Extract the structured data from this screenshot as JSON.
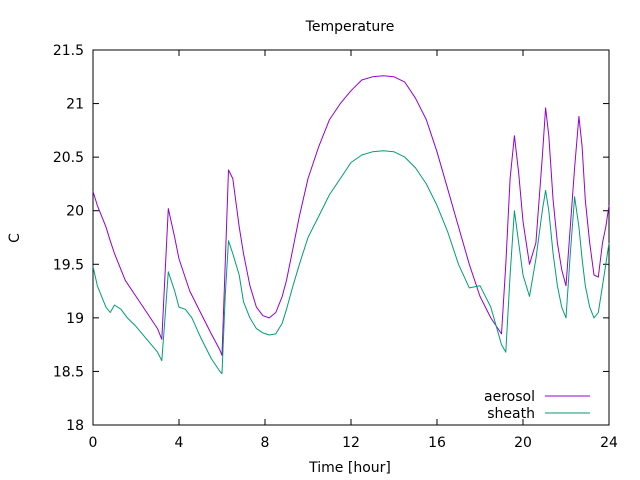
{
  "chart_data": {
    "type": "line",
    "title": "Temperature",
    "xlabel": "Time [hour]",
    "ylabel": "C",
    "xlim": [
      0,
      24
    ],
    "ylim": [
      18,
      21.5
    ],
    "x_ticks": [
      0,
      4,
      8,
      12,
      16,
      20,
      24
    ],
    "y_ticks": [
      18,
      18.5,
      19,
      19.5,
      20,
      20.5,
      21,
      21.5
    ],
    "x_tick_labels": [
      "0",
      "4",
      "8",
      "12",
      "16",
      "20",
      "24"
    ],
    "y_tick_labels": [
      "18",
      "18.5",
      "19",
      "19.5",
      "20",
      "20.5",
      "21",
      "21.5"
    ],
    "grid": false,
    "legend_position": "bottom-right",
    "series": [
      {
        "name": "aerosol",
        "color": "#9400d3",
        "x": [
          0,
          0.2,
          0.4,
          0.6,
          0.8,
          1.0,
          1.5,
          2.0,
          2.5,
          3.0,
          3.2,
          3.35,
          3.5,
          3.8,
          4.0,
          4.5,
          5.0,
          5.5,
          5.9,
          6.0,
          6.15,
          6.3,
          6.5,
          6.8,
          7.0,
          7.3,
          7.6,
          7.9,
          8.2,
          8.5,
          8.8,
          9.0,
          9.3,
          9.6,
          10.0,
          10.5,
          11.0,
          11.5,
          12.0,
          12.5,
          13.0,
          13.5,
          14.0,
          14.5,
          15.0,
          15.5,
          16.0,
          16.5,
          17.0,
          17.5,
          18.0,
          18.5,
          19.0,
          19.2,
          19.4,
          19.6,
          19.8,
          20.0,
          20.3,
          20.6,
          20.9,
          21.05,
          21.2,
          21.4,
          21.6,
          21.8,
          22.0,
          22.2,
          22.4,
          22.6,
          22.75,
          22.9,
          23.1,
          23.3,
          23.5,
          23.7,
          23.85,
          24.0
        ],
        "values": [
          20.18,
          20.05,
          19.95,
          19.85,
          19.72,
          19.6,
          19.35,
          19.2,
          19.05,
          18.9,
          18.8,
          19.4,
          20.02,
          19.75,
          19.55,
          19.25,
          19.05,
          18.85,
          18.7,
          18.65,
          19.5,
          20.38,
          20.3,
          19.85,
          19.6,
          19.3,
          19.1,
          19.02,
          19.0,
          19.05,
          19.2,
          19.35,
          19.65,
          19.95,
          20.3,
          20.6,
          20.85,
          21.0,
          21.12,
          21.22,
          21.25,
          21.26,
          21.25,
          21.2,
          21.05,
          20.85,
          20.55,
          20.2,
          19.85,
          19.5,
          19.2,
          19.0,
          18.85,
          19.5,
          20.3,
          20.7,
          20.35,
          19.9,
          19.5,
          19.7,
          20.5,
          20.96,
          20.7,
          20.1,
          19.7,
          19.45,
          19.3,
          19.85,
          20.4,
          20.88,
          20.6,
          20.1,
          19.7,
          19.4,
          19.38,
          19.7,
          19.85,
          20.05
        ]
      },
      {
        "name": "sheath",
        "color": "#009e73",
        "x": [
          0,
          0.2,
          0.4,
          0.6,
          0.8,
          1.0,
          1.3,
          1.6,
          2.0,
          2.5,
          3.0,
          3.2,
          3.35,
          3.5,
          3.8,
          4.0,
          4.3,
          4.6,
          5.0,
          5.5,
          5.9,
          6.0,
          6.15,
          6.3,
          6.5,
          6.8,
          7.0,
          7.3,
          7.6,
          7.9,
          8.2,
          8.5,
          8.8,
          9.0,
          9.3,
          9.6,
          10.0,
          10.5,
          11.0,
          11.5,
          12.0,
          12.5,
          13.0,
          13.5,
          14.0,
          14.5,
          15.0,
          15.5,
          16.0,
          16.5,
          17.0,
          17.5,
          18.0,
          18.5,
          19.0,
          19.2,
          19.4,
          19.6,
          19.8,
          20.0,
          20.3,
          20.6,
          20.9,
          21.05,
          21.2,
          21.4,
          21.6,
          21.8,
          22.0,
          22.2,
          22.4,
          22.6,
          22.75,
          22.9,
          23.1,
          23.3,
          23.5,
          23.7,
          23.85,
          24.0
        ],
        "values": [
          19.48,
          19.3,
          19.2,
          19.1,
          19.05,
          19.12,
          19.08,
          19.0,
          18.92,
          18.8,
          18.68,
          18.6,
          19.0,
          19.43,
          19.25,
          19.1,
          19.08,
          19.0,
          18.82,
          18.62,
          18.5,
          18.48,
          19.2,
          19.72,
          19.6,
          19.4,
          19.15,
          19.0,
          18.9,
          18.86,
          18.84,
          18.85,
          18.95,
          19.08,
          19.3,
          19.5,
          19.75,
          19.95,
          20.15,
          20.3,
          20.45,
          20.52,
          20.55,
          20.56,
          20.55,
          20.5,
          20.4,
          20.25,
          20.05,
          19.8,
          19.5,
          19.28,
          19.3,
          19.1,
          18.75,
          18.68,
          19.4,
          20.0,
          19.7,
          19.4,
          19.2,
          19.55,
          20.0,
          20.19,
          20.0,
          19.6,
          19.3,
          19.1,
          19.0,
          19.6,
          20.13,
          19.85,
          19.55,
          19.3,
          19.1,
          19.0,
          19.05,
          19.3,
          19.5,
          19.7
        ]
      }
    ]
  }
}
